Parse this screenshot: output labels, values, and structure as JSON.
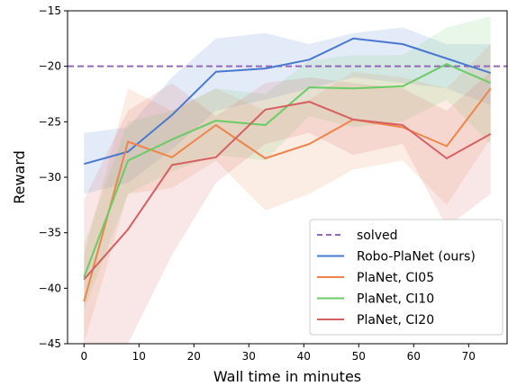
{
  "chart_data": {
    "type": "line",
    "xlabel": "Wall time in minutes",
    "ylabel": "Reward",
    "xlim": [
      -3,
      77
    ],
    "ylim": [
      -45,
      -15
    ],
    "xticks": [
      0,
      10,
      20,
      30,
      40,
      50,
      60,
      70
    ],
    "yticks": [
      -45,
      -40,
      -35,
      -30,
      -25,
      -20,
      -15
    ],
    "xtick_labels": [
      "0",
      "10",
      "20",
      "30",
      "40",
      "50",
      "60",
      "70"
    ],
    "ytick_labels": [
      "−45",
      "−40",
      "−35",
      "−30",
      "−25",
      "−20",
      "−15"
    ],
    "grid": false,
    "legend_position": "lower-right",
    "reference_line": {
      "name": "solved",
      "y": -20,
      "color": "#9467bd",
      "style": "dashed"
    },
    "series": [
      {
        "name": "Robo-PlaNet (ours)",
        "color": "#4878d0",
        "x": [
          0,
          8,
          16,
          24,
          33,
          41,
          49,
          58,
          66,
          74
        ],
        "y": [
          -28.8,
          -27.7,
          -24.4,
          -20.5,
          -20.2,
          -19.4,
          -17.5,
          -18.0,
          -19.3,
          -20.6
        ],
        "lower": [
          -31.5,
          -30.5,
          -27.5,
          -24.0,
          -23.0,
          -22.0,
          -21.0,
          -21.5,
          -22.0,
          -23.5
        ],
        "upper": [
          -26.0,
          -25.5,
          -21.0,
          -17.5,
          -17.0,
          -18.0,
          -17.0,
          -16.5,
          -18.0,
          -18.0
        ]
      },
      {
        "name": "PlaNet, CI05",
        "color": "#ee854a",
        "x": [
          0,
          8,
          16,
          24,
          33,
          41,
          49,
          58,
          66,
          74
        ],
        "y": [
          -41.2,
          -26.8,
          -28.2,
          -25.3,
          -28.3,
          -27.0,
          -24.8,
          -25.5,
          -27.2,
          -22.0
        ],
        "lower": [
          -45.0,
          -31.5,
          -31.0,
          -28.5,
          -33.0,
          -31.5,
          -29.3,
          -28.5,
          -32.5,
          -26.5
        ],
        "upper": [
          -37.0,
          -22.0,
          -24.0,
          -22.0,
          -24.0,
          -23.0,
          -20.5,
          -21.0,
          -22.0,
          -18.0
        ]
      },
      {
        "name": "PlaNet, CI10",
        "color": "#6acc64",
        "x": [
          0,
          8,
          16,
          24,
          33,
          41,
          49,
          58,
          66,
          74
        ],
        "y": [
          -39.0,
          -28.5,
          -26.6,
          -24.9,
          -25.3,
          -21.9,
          -22.0,
          -21.8,
          -19.8,
          -21.5
        ],
        "lower": [
          -42.0,
          -31.5,
          -29.5,
          -28.0,
          -28.5,
          -24.5,
          -25.5,
          -25.0,
          -23.0,
          -27.0
        ],
        "upper": [
          -36.0,
          -25.0,
          -24.0,
          -22.0,
          -22.5,
          -19.5,
          -19.0,
          -19.0,
          -16.5,
          -15.5
        ]
      },
      {
        "name": "PlaNet, CI20",
        "color": "#d65f5f",
        "x": [
          0,
          8,
          16,
          24,
          33,
          41,
          49,
          58,
          66,
          74
        ],
        "y": [
          -39.2,
          -34.7,
          -28.9,
          -28.2,
          -23.9,
          -23.2,
          -24.8,
          -25.3,
          -28.3,
          -26.1
        ],
        "lower": [
          -45.0,
          -45.0,
          -37.0,
          -30.5,
          -27.0,
          -26.0,
          -28.0,
          -27.0,
          -34.5,
          -31.5
        ],
        "upper": [
          -32.0,
          -24.0,
          -21.5,
          -24.5,
          -21.5,
          -21.0,
          -21.5,
          -22.0,
          -24.0,
          -20.5
        ]
      }
    ]
  }
}
